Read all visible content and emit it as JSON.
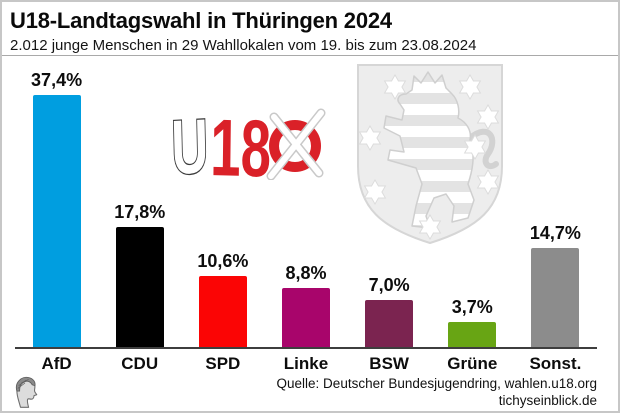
{
  "header": {
    "title": "U18-Landtagswahl in Thüringen 2024",
    "subtitle": "2.012 junge Menschen in 29 Wahllokalen vom 19. bis zum 23.08.2024"
  },
  "chart_data": {
    "type": "bar",
    "title": "U18-Landtagswahl in Thüringen 2024",
    "subtitle": "2.012 junge Menschen in 29 Wahllokalen vom 19. bis zum 23.08.2024",
    "categories": [
      "AfD",
      "CDU",
      "SPD",
      "Linke",
      "BSW",
      "Grüne",
      "Sonst."
    ],
    "values": [
      37.4,
      17.8,
      10.6,
      8.8,
      7.0,
      3.7,
      14.7
    ],
    "value_labels": [
      "37,4%",
      "17,8%",
      "10,6%",
      "8,8%",
      "7,0%",
      "3,7%",
      "14,7%"
    ],
    "bar_colors": [
      "#009ee0",
      "#000000",
      "#fb0505",
      "#a8056b",
      "#7b2450",
      "#68a514",
      "#8c8c8c"
    ],
    "unit": "%",
    "xlabel": "",
    "ylabel": "",
    "ylim": [
      0,
      40
    ],
    "grid": false,
    "legend": "none",
    "annotations": [
      "U18 logo (red, with ballot cross)",
      "Thuringia coat of arms watermark"
    ]
  },
  "logo": {
    "u": "U",
    "eighteen": "18",
    "red": "#da2128"
  },
  "icons": {
    "u18_logo": "u18-election-logo",
    "coat_of_arms": "thuringia-coat-of-arms",
    "publisher_head": "tichys-einblick-head-logo"
  },
  "footer": {
    "source_line1": "Quelle: Deutscher Bundesjugendring, wahlen.u18.org",
    "source_line2": "tichyseinblick.de"
  }
}
